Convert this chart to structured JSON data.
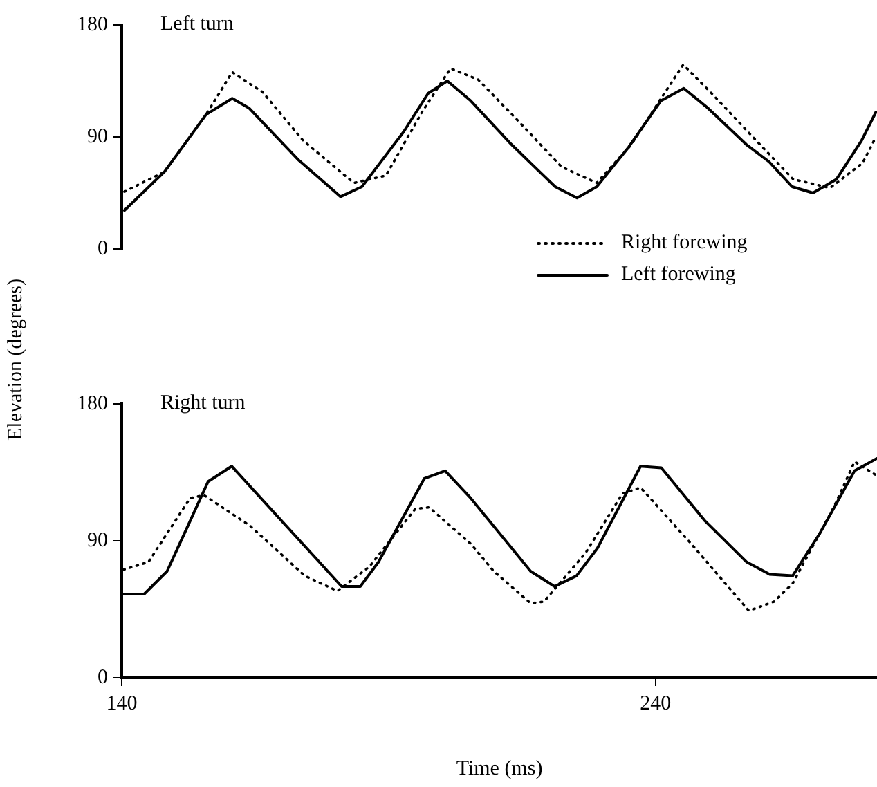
{
  "chart_data": [
    {
      "type": "line",
      "title": "Left turn",
      "ylabel": "Elevation (degrees)",
      "xlim": [
        140,
        281.5
      ],
      "ylim": [
        0,
        180
      ],
      "yticks": [
        0,
        90,
        180
      ],
      "tick_labels": "y",
      "grid": false,
      "legend": "bottom right",
      "marker": "none",
      "series": [
        {
          "name": "Right forewing",
          "color": "#000000",
          "line_style": "dotted",
          "x": [
            140.5,
            148,
            155.8,
            160.7,
            166.4,
            174,
            183.5,
            189.5,
            196.4,
            201.6,
            206.8,
            213.8,
            222.4,
            229,
            235.5,
            241.2,
            245.2,
            250.3,
            258.9,
            265.8,
            272.7,
            278.8,
            281.3
          ],
          "values": [
            46,
            62,
            108,
            142,
            126,
            87,
            53,
            59,
            111,
            145,
            136,
            105,
            66,
            53,
            84,
            122,
            148,
            126,
            87,
            56,
            49,
            69,
            90
          ]
        },
        {
          "name": "Left forewing",
          "color": "#000000",
          "line_style": "solid",
          "x": [
            140.5,
            148,
            155.8,
            160.7,
            163.9,
            173,
            181,
            185,
            192.8,
            197.4,
            201,
            205.4,
            213,
            221.2,
            225.3,
            229,
            235,
            241,
            245.3,
            249.6,
            257,
            261.3,
            265.6,
            269.5,
            273.9,
            278.6,
            281.3
          ],
          "values": [
            31,
            62,
            108,
            121,
            113,
            72,
            42,
            50,
            94,
            125,
            135,
            119,
            84,
            50,
            41,
            50,
            82,
            119,
            129,
            114,
            84,
            70,
            50,
            45,
            56,
            87,
            110
          ]
        }
      ]
    },
    {
      "type": "line",
      "title": "Right turn",
      "xlabel": "Time (ms)",
      "xlim": [
        140,
        281.5
      ],
      "xticks": [
        140,
        240
      ],
      "ylim": [
        0,
        180
      ],
      "yticks": [
        0,
        90,
        180
      ],
      "grid": false,
      "marker": "none",
      "series": [
        {
          "color": "#000000",
          "line_style": "dotted",
          "x": [
            140.3,
            145,
            152.8,
            155.4,
            164,
            174.3,
            180.4,
            186.4,
            195,
            197.6,
            205.4,
            209.7,
            216.6,
            219.1,
            226.9,
            233.8,
            237.2,
            246.7,
            257.5,
            262.2,
            265.7,
            273.4,
            277.3,
            281.4
          ],
          "values": [
            71,
            76,
            118,
            120,
            100,
            67,
            57,
            73,
            111,
            112,
            88,
            70,
            49,
            50,
            82,
            121,
            125,
            88,
            44,
            50,
            62,
            112,
            142,
            133
          ]
        },
        {
          "color": "#000000",
          "line_style": "solid",
          "x": [
            140.3,
            144.2,
            148.5,
            156.2,
            160.6,
            181.2,
            184.7,
            188.1,
            196.7,
            200.6,
            205.4,
            216.6,
            221.1,
            225.2,
            229.1,
            237.2,
            241.1,
            249.3,
            257.1,
            261.4,
            265.7,
            270.8,
            277.3,
            281.4
          ],
          "values": [
            55,
            55,
            70,
            129,
            139,
            60,
            60,
            76,
            131,
            136,
            118,
            70,
            60,
            67,
            85,
            139,
            138,
            103,
            76,
            68,
            67,
            95,
            136,
            144
          ]
        }
      ]
    }
  ]
}
